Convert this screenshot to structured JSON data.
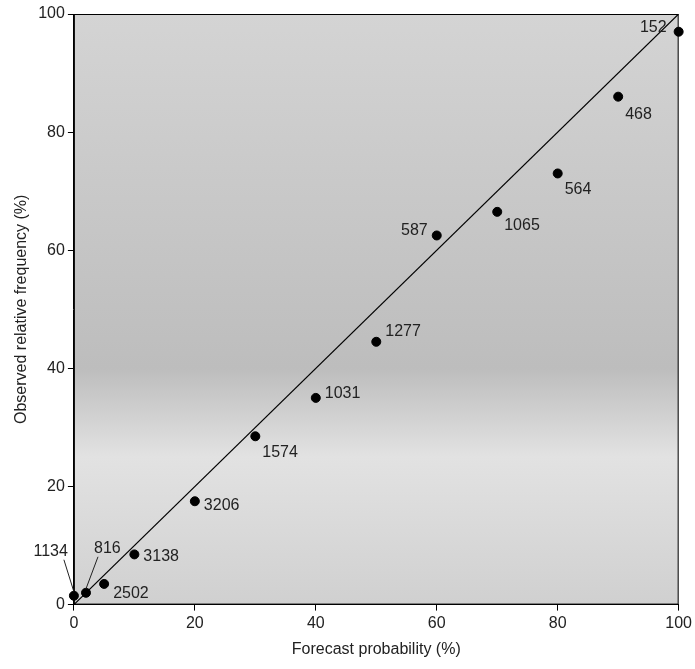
{
  "chart_data": {
    "type": "scatter",
    "xlabel": "Forecast probability (%)",
    "ylabel": "Observed relative frequency (%)",
    "xlim": [
      0,
      100
    ],
    "ylim": [
      0,
      100
    ],
    "xticks": [
      0,
      20,
      40,
      60,
      80,
      100
    ],
    "yticks": [
      0,
      20,
      40,
      60,
      80,
      100
    ],
    "grid": false,
    "series": [
      {
        "type": "scatter",
        "color": "#000000",
        "marker": "circle",
        "x": [
          0,
          2,
          5,
          10,
          20,
          30,
          40,
          50,
          60,
          70,
          80,
          90,
          100
        ],
        "values": [
          1.5,
          2,
          3.5,
          8.5,
          17.5,
          28.5,
          35,
          44.5,
          62.5,
          66.5,
          73,
          86,
          97
        ],
        "counts": [
          1134,
          816,
          2502,
          3138,
          3206,
          1574,
          1031,
          1277,
          587,
          1065,
          564,
          468,
          152
        ]
      },
      {
        "type": "line",
        "color": "#000000",
        "line_style": "solid",
        "x": [
          0,
          100
        ],
        "values": [
          0,
          100
        ]
      }
    ]
  }
}
